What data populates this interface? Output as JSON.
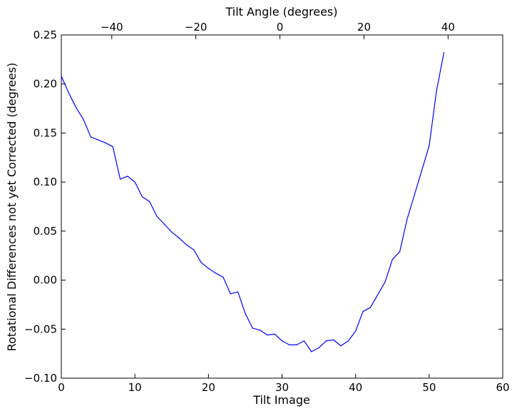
{
  "chart_data": {
    "type": "line",
    "title": "",
    "xlabel": "Tilt Image",
    "ylabel": "Rotational Differences not yet Corrected (degrees)",
    "secondary_xlabel": "Tilt Angle (degrees)",
    "xlim": [
      0,
      60
    ],
    "ylim": [
      -0.1,
      0.25
    ],
    "x_ticks": [
      0,
      10,
      20,
      30,
      40,
      50,
      60
    ],
    "x_tick_labels": [
      "0",
      "10",
      "20",
      "30",
      "40",
      "50",
      "60"
    ],
    "y_ticks": [
      -0.1,
      -0.05,
      0.0,
      0.05,
      0.1,
      0.15,
      0.2,
      0.25
    ],
    "y_tick_labels": [
      "−0.10",
      "−0.05",
      "0.00",
      "0.05",
      "0.10",
      "0.15",
      "0.20",
      "0.25"
    ],
    "top_axis_range": [
      -52,
      53
    ],
    "top_ticks": [
      -40,
      -20,
      0,
      20,
      40
    ],
    "top_tick_labels": [
      "−40",
      "−20",
      "0",
      "20",
      "40"
    ],
    "grid": false,
    "legend": "none",
    "series": [
      {
        "color": "#0000ff",
        "x": [
          0,
          1,
          2,
          3,
          4,
          5,
          6,
          7,
          8,
          9,
          10,
          11,
          12,
          13,
          14,
          15,
          16,
          17,
          18,
          19,
          20,
          21,
          22,
          23,
          24,
          25,
          26,
          27,
          28,
          29,
          30,
          31,
          32,
          33,
          34,
          35,
          36,
          37,
          38,
          39,
          40,
          41,
          42,
          43,
          44,
          45,
          46,
          47,
          48,
          49,
          50,
          51,
          52
        ],
        "y": [
          0.208,
          0.191,
          0.176,
          0.164,
          0.146,
          0.143,
          0.14,
          0.136,
          0.103,
          0.106,
          0.1,
          0.085,
          0.08,
          0.065,
          0.057,
          0.049,
          0.043,
          0.036,
          0.031,
          0.018,
          0.012,
          0.007,
          0.003,
          -0.014,
          -0.012,
          -0.034,
          -0.049,
          -0.051,
          -0.056,
          -0.055,
          -0.062,
          -0.066,
          -0.066,
          -0.062,
          -0.073,
          -0.069,
          -0.062,
          -0.061,
          -0.067,
          -0.062,
          -0.052,
          -0.032,
          -0.028,
          -0.015,
          -0.002,
          0.021,
          0.029,
          0.062,
          0.087,
          0.112,
          0.137,
          0.193,
          0.232
        ]
      }
    ]
  }
}
